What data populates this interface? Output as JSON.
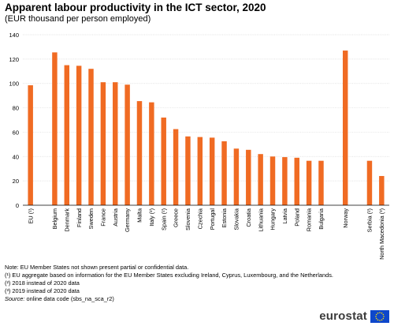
{
  "title": "Apparent labour productivity in the ICT sector, 2020",
  "subtitle": "(EUR thousand per person employed)",
  "chart_data": {
    "type": "bar",
    "title": "Apparent labour productivity in the ICT sector, 2020",
    "subtitle": "(EUR thousand per person employed)",
    "xlabel": "",
    "ylabel": "",
    "ylim": [
      0,
      140
    ],
    "yticks": [
      0,
      20,
      40,
      60,
      80,
      100,
      120,
      140
    ],
    "grid": true,
    "legend": "none",
    "bar_color": "#f06b23",
    "categories": [
      "EU (¹)",
      "Belgium",
      "Denmark",
      "Finland",
      "Sweden",
      "France",
      "Austria",
      "Germany",
      "Malta",
      "Italy (²)",
      "Spain (²)",
      "Greece",
      "Slovenia",
      "Czechia",
      "Portugal",
      "Estonia",
      "Slovakia",
      "Croatia",
      "Lithuania",
      "Hungary",
      "Latvia",
      "Poland",
      "Romania",
      "Bulgaria",
      "Norway",
      "Serbia (²)",
      "North Macedonia (³)"
    ],
    "values": [
      98.5,
      125.5,
      115,
      114.5,
      112,
      101,
      101,
      99,
      85.5,
      84.5,
      72,
      62.5,
      56.5,
      56,
      55.5,
      52.5,
      46.5,
      45.5,
      42,
      40,
      39.5,
      39,
      36.5,
      36.5,
      127,
      36.5,
      24
    ],
    "gap_after": [
      "EU (¹)",
      "Bulgaria",
      "Norway"
    ]
  },
  "notes": [
    "Note: EU Member States not shown present partial or confidential data.",
    "(¹) EU aggregate based on information for the EU Member States excluding  Ireland, Cyprus, Luxembourg,  and the Netherlands.",
    "(²) 2018 instead of 2020 data",
    "(³) 2019 instead of 2020 data"
  ],
  "source": {
    "label": "Source:",
    "text": " online data code (sbs_na_sca_r2)"
  },
  "logo": {
    "text": "eurostat",
    "flag_color": "#0e47cb",
    "star_color": "#ffdd00"
  }
}
